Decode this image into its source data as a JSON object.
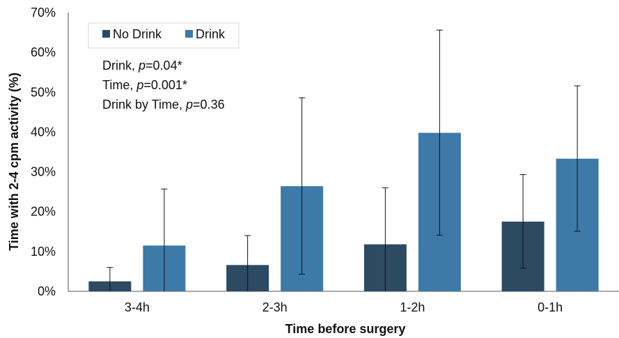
{
  "chart_data": {
    "type": "bar",
    "xlabel": "Time before surgery",
    "ylabel": "Time with 2-4 cpm activity (%)",
    "ylim": [
      0,
      70
    ],
    "y_ticks": [
      "0%",
      "10%",
      "20%",
      "30%",
      "40%",
      "50%",
      "60%",
      "70%"
    ],
    "categories": [
      "3-4h",
      "2-3h",
      "1-2h",
      "0-1h"
    ],
    "series": [
      {
        "name": "No Drink",
        "color": "#2d4a63",
        "values": [
          2.5,
          6.6,
          11.8,
          17.5
        ],
        "error_upper": [
          6.0,
          14.0,
          26.0,
          29.3
        ],
        "error_lower": [
          0,
          0,
          0,
          5.8
        ]
      },
      {
        "name": "Drink",
        "color": "#3d7aa8",
        "values": [
          11.5,
          26.4,
          39.8,
          33.3
        ],
        "error_upper": [
          25.7,
          48.6,
          65.6,
          51.6
        ],
        "error_lower": [
          0,
          4.3,
          14.1,
          15.1
        ]
      }
    ],
    "legend_position": "top-left",
    "grid": false,
    "annotations": [
      {
        "prefix": "Drink, ",
        "p_symbol": "p",
        "suffix": "=0.04*"
      },
      {
        "prefix": "Time, ",
        "p_symbol": "p",
        "suffix": "=0.001*"
      },
      {
        "prefix": "Drink by Time, ",
        "p_symbol": "p",
        "suffix": "=0.36"
      }
    ]
  }
}
